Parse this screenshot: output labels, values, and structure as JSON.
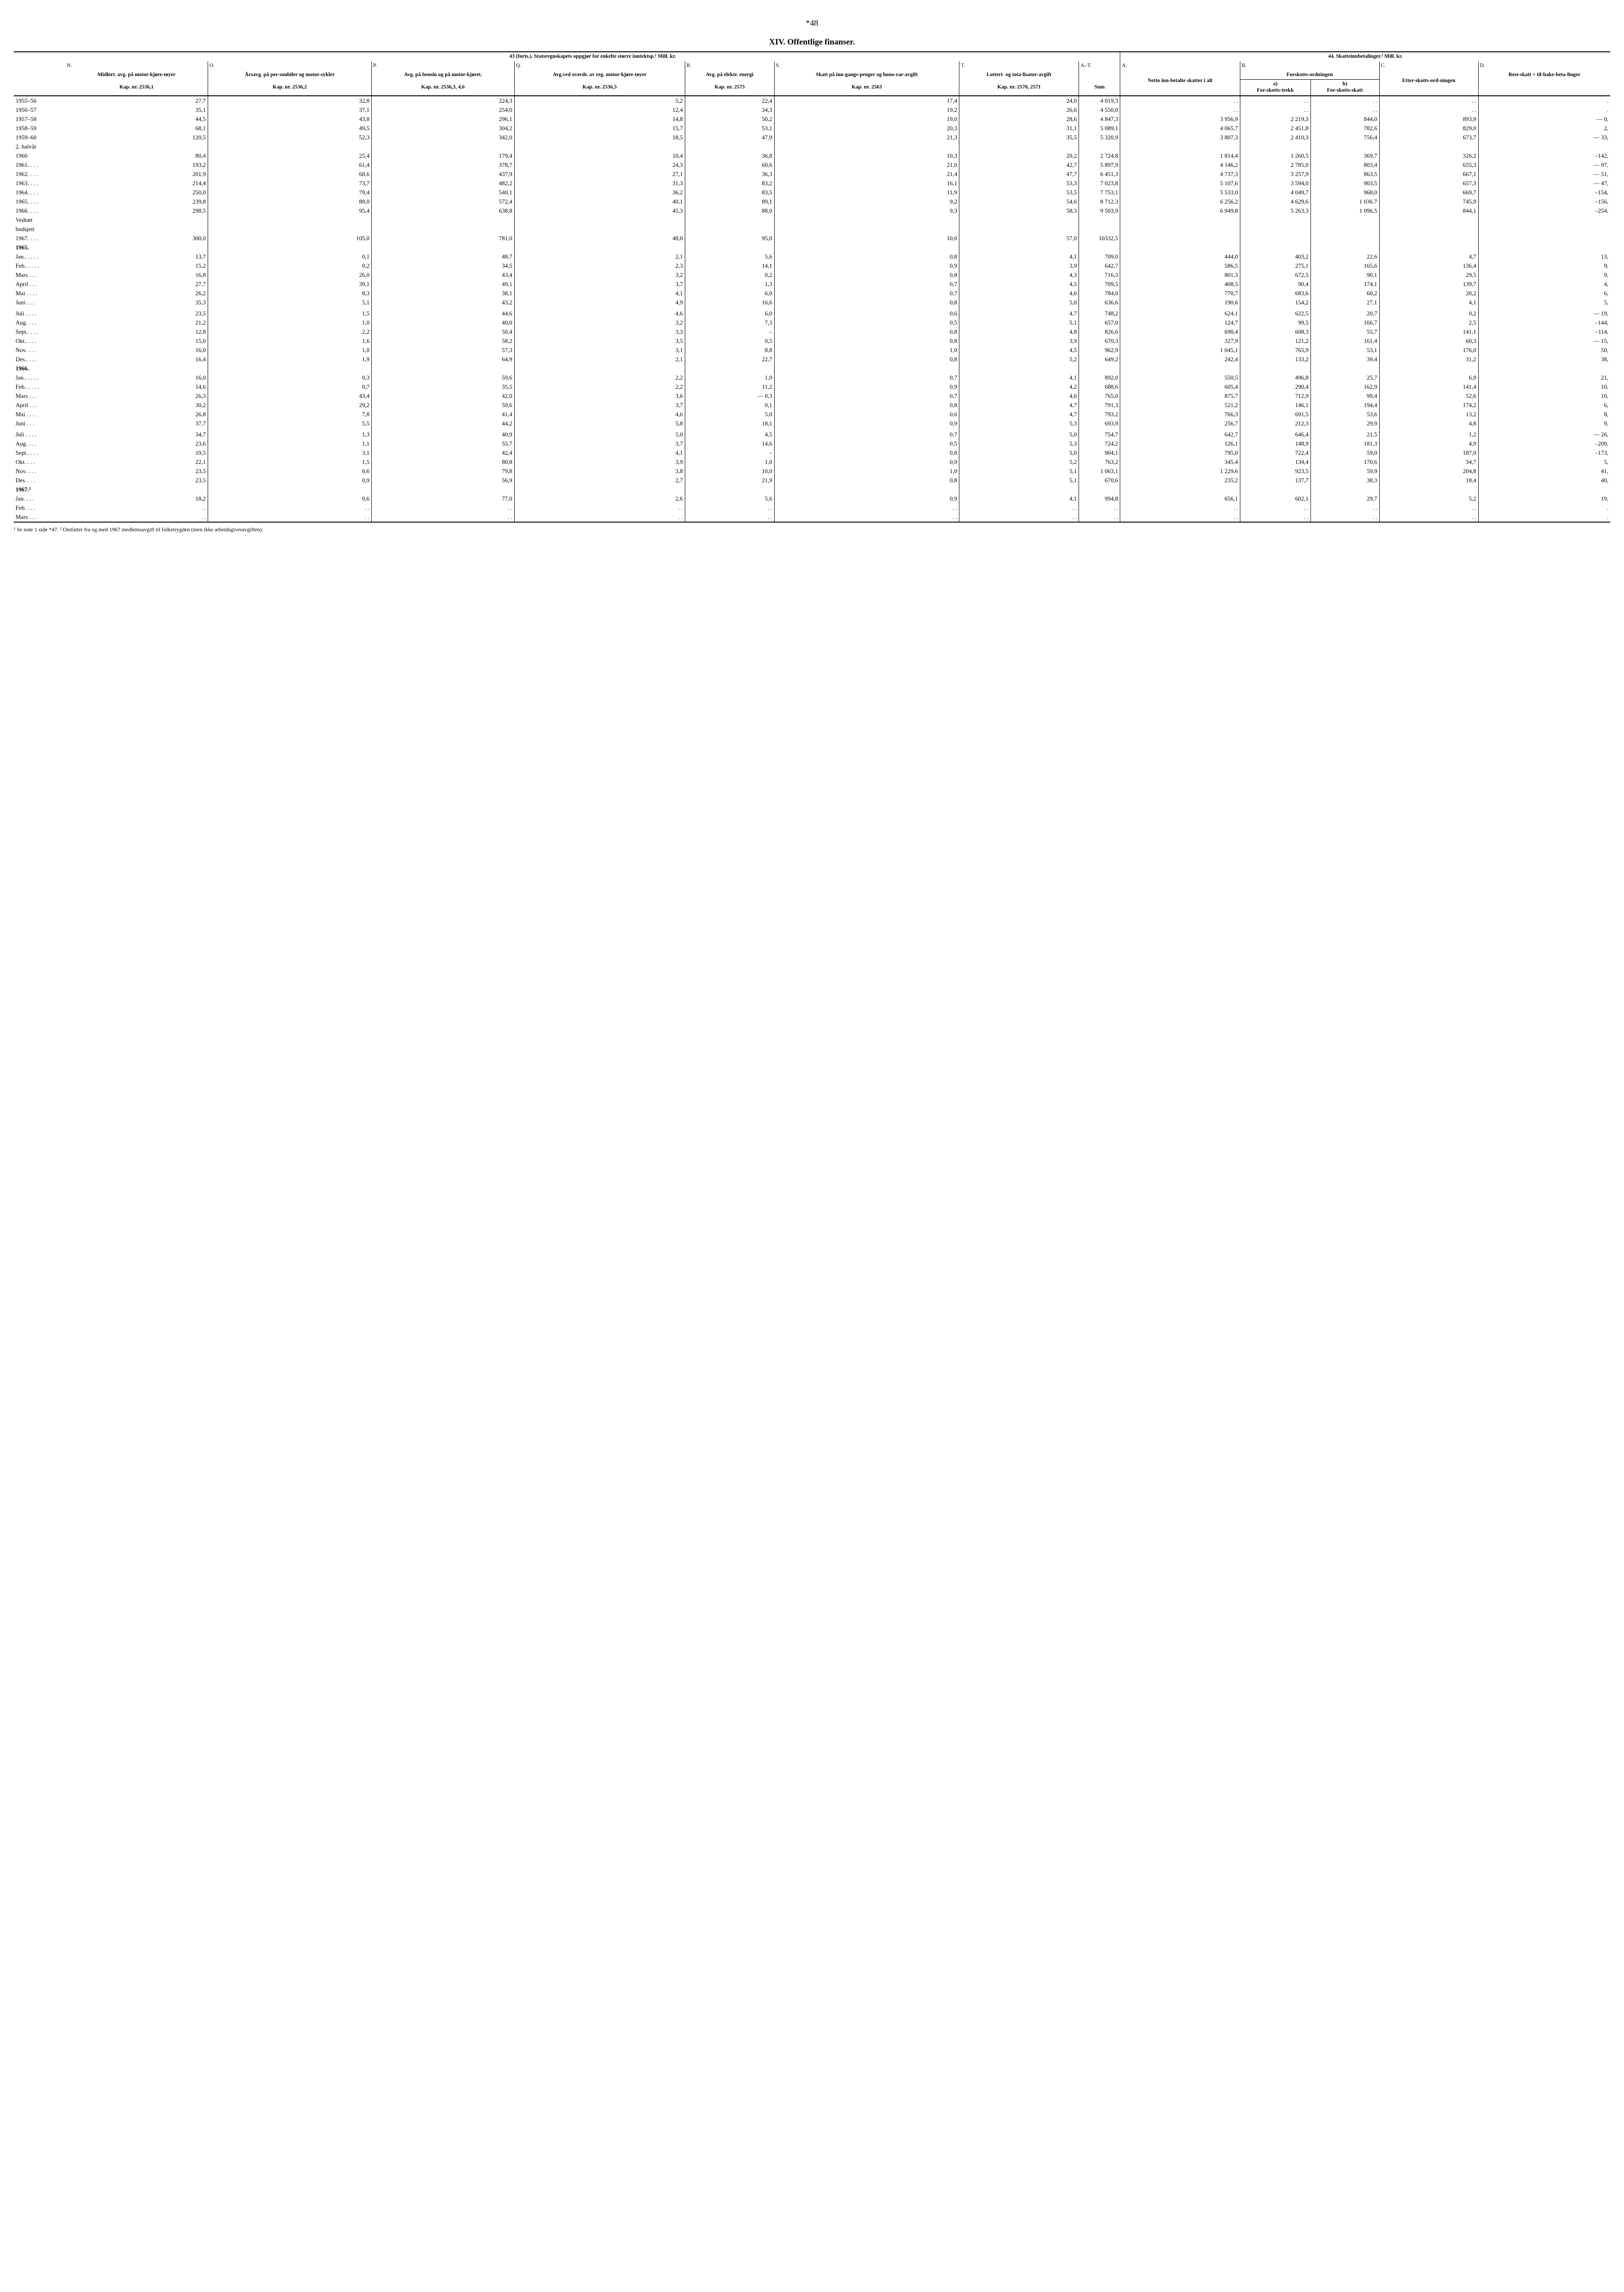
{
  "page_number": "*48",
  "title": "XIV. Offentlige finanser.",
  "header": {
    "left_group": "43 (forts.). Statsregnskapets oppgjør for enkelte større inntektsp.¹ Mill. kr.",
    "right_group": "44. Skatteinnbetalinger.² Mill. kr.",
    "cols": {
      "N": {
        "letter": "N.",
        "desc": "Midlert. avg. på motor-kjøre-tøyer",
        "kap": "Kap. nr. 2536,1"
      },
      "O": {
        "letter": "O.",
        "desc": "Årsavg. på per-sonbiler og motor-sykler",
        "kap": "Kap. nr. 2536,2"
      },
      "P": {
        "letter": "P.",
        "desc": "Avg. på bensin og på motor-kjøret.",
        "kap": "Kap. nr. 2536,3, 4,6"
      },
      "Q": {
        "letter": "Q.",
        "desc": "Avg.ved overdr. av reg. motor-kjøre-tøyer",
        "kap": "Kap. nr. 2536,5"
      },
      "R": {
        "letter": "R.",
        "desc": "Avg. på elektr. energi",
        "kap": "Kap. nr. 2575"
      },
      "S": {
        "letter": "S.",
        "desc": "Skatt på inn-gangs-penger og hono-rar-avgift",
        "kap": "Kap. nr. 2563"
      },
      "T": {
        "letter": "T.",
        "desc": "Lotteri- og tota-lisator-avgift",
        "kap": "Kap. nr. 2570, 2571"
      },
      "AT": {
        "letter": "A.-T.",
        "desc": "Sum"
      },
      "A2": {
        "letter": "A.",
        "desc": "Netto inn-betalte skatter i alt"
      },
      "B2": {
        "letter": "B.",
        "desc": "Forskotts-ordningen",
        "sub_a": "a)",
        "sub_a_desc": "For-skotts-trekk",
        "sub_b": "b)",
        "sub_b_desc": "For-skotts-skatt"
      },
      "C2": {
        "letter": "C.",
        "desc": "Etter-skotts-ord-ningen"
      },
      "D2": {
        "letter": "D.",
        "desc": "Rest-skatt ÷ til-bake-beta-linger"
      }
    }
  },
  "rows": [
    {
      "label": "1955–56",
      "N": "27,7",
      "O": "32,8",
      "P": "224,3",
      "Q": "5,2",
      "R": "22,4",
      "S": "17,4",
      "T": "24,0",
      "AT": "4 019,3",
      "A2": ". .",
      "Ba": ". .",
      "Bb": ". .",
      "C2": ". .",
      "D2": "."
    },
    {
      "label": "1956–57",
      "N": "35,1",
      "O": "37,1",
      "P": "254,0",
      "Q": "12,4",
      "R": "34,3",
      "S": "19,2",
      "T": "26,6",
      "AT": "4 550,0",
      "A2": ". .",
      "Ba": ". .",
      "Bb": ". .",
      "C2": ". .",
      "D2": "."
    },
    {
      "label": "1957–58",
      "N": "44,5",
      "O": "43,8",
      "P": "296,1",
      "Q": "14,8",
      "R": "50,2",
      "S": "19,0",
      "T": "28,6",
      "AT": "4 847,3",
      "A2": "3 956,9",
      "Ba": "2 219,3",
      "Bb": "844,0",
      "C2": "893,9",
      "D2": "— 0,"
    },
    {
      "label": "1958–59",
      "N": "68,1",
      "O": "49,5",
      "P": "304,2",
      "Q": "15,7",
      "R": "53,1",
      "S": "20,3",
      "T": "31,1",
      "AT": "5 089,1",
      "A2": "4 065,7",
      "Ba": "2 451,8",
      "Bb": "782,6",
      "C2": "829,0",
      "D2": "2,"
    },
    {
      "label": "1959–60",
      "N": "120,5",
      "O": "52,3",
      "P": "342,0",
      "Q": "18,5",
      "R": "47,9",
      "S": "21,3",
      "T": "35,5",
      "AT": "5 320,9",
      "A2": "3 807,3",
      "Ba": "2 410,3",
      "Bb": "756,4",
      "C2": "673,7",
      "D2": "— 33,"
    },
    {
      "label": "2. halvår",
      "section": true
    },
    {
      "label": "1960",
      "N": "80,4",
      "O": "25,4",
      "P": "179,4",
      "Q": "10,4",
      "R": "36,8",
      "S": "10,3",
      "T": "20,2",
      "AT": "2 724,8",
      "A2": "1 814,4",
      "Ba": "1 260,5",
      "Bb": "369,7",
      "C2": "326,2",
      "D2": "–142,"
    },
    {
      "label": "1961. . . .",
      "N": "193,2",
      "O": "61,4",
      "P": "378,7",
      "Q": "24,3",
      "R": "60,6",
      "S": "21,0",
      "T": "42,7",
      "AT": "5 897,9",
      "A2": "4 146,2",
      "Ba": "2 785,0",
      "Bb": "803,4",
      "C2": "655,3",
      "D2": "— 97,"
    },
    {
      "label": "1962. . . .",
      "N": "201,9",
      "O": "68,6",
      "P": "437,9",
      "Q": "27,1",
      "R": "36,3",
      "S": "21,4",
      "T": "47,7",
      "AT": "6 451,3",
      "A2": "4 737,3",
      "Ba": "3 257,9",
      "Bb": "863,5",
      "C2": "667,1",
      "D2": "— 51,"
    },
    {
      "label": "1963. . . .",
      "N": "214,4",
      "O": "73,7",
      "P": "482,2",
      "Q": "31,3",
      "R": "83,2",
      "S": "16,1",
      "T": "53,3",
      "AT": "7 023,8",
      "A2": "5 107,6",
      "Ba": "3 594,0",
      "Bb": "903,5",
      "C2": "657,3",
      "D2": "— 47,"
    },
    {
      "label": "1964. . . .",
      "N": "250,0",
      "O": "79,4",
      "P": "540,1",
      "Q": "36,2",
      "R": "83,5",
      "S": "11,9",
      "T": "53,5",
      "AT": "7 753,1",
      "A2": "5 533,0",
      "Ba": "4 049,7",
      "Bb": "968,0",
      "C2": "669,7",
      "D2": "–154,"
    },
    {
      "label": "1965. . . .",
      "N": "239,8",
      "O": "88,0",
      "P": "572,4",
      "Q": "40,1",
      "R": "89,1",
      "S": "9,2",
      "T": "54,6",
      "AT": "8 712.3",
      "A2": "6 256,2",
      "Ba": "4 629,6",
      "Bb": "1 036.7",
      "C2": "745,9",
      "D2": "–156,"
    },
    {
      "label": "1966. . . .",
      "N": "298,5",
      "O": "95,4",
      "P": "638,8",
      "Q": "45,3",
      "R": "88,0",
      "S": "9,3",
      "T": "58,3",
      "AT": "9 503,9",
      "A2": "6 949,8",
      "Ba": "5 263,3",
      "Bb": "1 096,5",
      "C2": "844,1",
      "D2": "–254,"
    },
    {
      "label": "Vedtatt",
      "section": true
    },
    {
      "label": "budsjett",
      "section": true
    },
    {
      "label": "1967. . . .",
      "N": "300,0",
      "O": "105,0",
      "P": "781,0",
      "Q": "48,0",
      "R": "95,0",
      "S": "10,0",
      "T": "57,0",
      "AT": "10332,5",
      "A2": "",
      "Ba": "",
      "Bb": "",
      "C2": "",
      "D2": ""
    },
    {
      "label": "1965.",
      "bold": true,
      "section": true
    },
    {
      "label": "Jan.. . . . .",
      "N": "13,7",
      "O": "0,1",
      "P": "48,7",
      "Q": "2,1",
      "R": "5,6",
      "S": "0,8",
      "T": "4,1",
      "AT": "709,0",
      "A2": "444,0",
      "Ba": "403,2",
      "Bb": "22,6",
      "C2": "4,7",
      "D2": "13,"
    },
    {
      "label": "Feb.. . . . .",
      "N": "15,2",
      "O": "0,2",
      "P": "34,5",
      "Q": "2,3",
      "R": "14,1",
      "S": "0,9",
      "T": "3,9",
      "AT": "642,7",
      "A2": "586,5",
      "Ba": "275,1",
      "Bb": "165,6",
      "C2": "136,4",
      "D2": "9,"
    },
    {
      "label": "Mars . . .",
      "N": "16,8",
      "O": "26,0",
      "P": "43,4",
      "Q": "3,2",
      "R": "0,2",
      "S": "0,8",
      "T": "4,3",
      "AT": "716,3",
      "A2": "801,3",
      "Ba": "672,5",
      "Bb": "90,1",
      "C2": "29,5",
      "D2": "9,"
    },
    {
      "label": "April . . .",
      "N": "27,7",
      "O": "39,1",
      "P": "49,1",
      "Q": "3,7",
      "R": "1,3",
      "S": "0,7",
      "T": "4,5",
      "AT": "709,5",
      "A2": "408,5",
      "Ba": "90,4",
      "Bb": "174,1",
      "C2": "139,7",
      "D2": "4,"
    },
    {
      "label": "Mai . . . .",
      "N": "26,2",
      "O": "8,3",
      "P": "38,1",
      "Q": "4,1",
      "R": "6,0",
      "S": "0,7",
      "T": "4,6",
      "AT": "784,0",
      "A2": "770,7",
      "Ba": "683,6",
      "Bb": "60,2",
      "C2": "20,2",
      "D2": "6,"
    },
    {
      "label": "Juni . . .",
      "N": "35,3",
      "O": "5,1",
      "P": "43,2",
      "Q": "4,9",
      "R": "16,6",
      "S": "0,8",
      "T": "5,0",
      "AT": "636,6",
      "A2": "190,6",
      "Ba": "154,2",
      "Bb": "27,1",
      "C2": "4,1",
      "D2": "5,"
    },
    {
      "label": "",
      "spacer": true
    },
    {
      "label": "Juli . . . .",
      "N": "23,5",
      "O": "1,5",
      "P": "44,6",
      "Q": "4,6",
      "R": "6,0",
      "S": "0,6",
      "T": "4,7",
      "AT": "748,2",
      "A2": "624,1",
      "Ba": "622,5",
      "Bb": "20,7",
      "C2": "0,2",
      "D2": "— 19,"
    },
    {
      "label": "Aug. . . .",
      "N": "21,2",
      "O": "1,0",
      "P": "40,0",
      "Q": "3,2",
      "R": "7,3",
      "S": "0,5",
      "T": "5,1",
      "AT": "657,0",
      "A2": "124,7",
      "Ba": "99,5",
      "Bb": "166,7",
      "C2": "2,5",
      "D2": "–144,"
    },
    {
      "label": "Sept.. . . .",
      "N": "12,8",
      "O": "2,2",
      "P": "50,4",
      "Q": "3,3",
      "R": "–",
      "S": "0,8",
      "T": "4,8",
      "AT": "826,6",
      "A2": "690,4",
      "Ba": "608,3",
      "Bb": "55,7",
      "C2": "141,1",
      "D2": "–114,"
    },
    {
      "label": "Okt.. . . .",
      "N": "15,0",
      "O": "1,6",
      "P": "58,2",
      "Q": "3,5",
      "R": "0,5",
      "S": "0,8",
      "T": "3,9",
      "AT": "670,3",
      "A2": "327,9",
      "Ba": "121,2",
      "Bb": "161,4",
      "C2": "60,3",
      "D2": "— 15,"
    },
    {
      "label": "Nov. . . .",
      "N": "16,0",
      "O": "1,0",
      "P": "57,3",
      "Q": "3,1",
      "R": "8,8",
      "S": "1,0",
      "T": "4,5",
      "AT": "962,9",
      "A2": "1 045,1",
      "Ba": "765,9",
      "Bb": "53,1",
      "C2": "176,0",
      "D2": "50,"
    },
    {
      "label": "Des.. . . .",
      "N": "16,4",
      "O": "1,9",
      "P": "64,9",
      "Q": "2,1",
      "R": "22,7",
      "S": "0,8",
      "T": "5,2",
      "AT": "649,2",
      "A2": "242,4",
      "Ba": "133,2",
      "Bb": "39,4",
      "C2": "31,2",
      "D2": "38,"
    },
    {
      "label": "1966.",
      "bold": true,
      "section": true
    },
    {
      "label": "Jan.. . . . .",
      "N": "16,0",
      "O": "0,3",
      "P": "59,6",
      "Q": "2,2",
      "R": "1,9",
      "S": "0,7",
      "T": "4,1",
      "AT": "892,0",
      "A2": "550,5",
      "Ba": "496,8",
      "Bb": "25,7",
      "C2": "6,9",
      "D2": "21,"
    },
    {
      "label": "Feb.. . . . .",
      "N": "14,6",
      "O": "0,7",
      "P": "35,5",
      "Q": "2,2",
      "R": "11,2",
      "S": "0,9",
      "T": "4,2",
      "AT": "688,6",
      "A2": "605,4",
      "Ba": "290,4",
      "Bb": "162,9",
      "C2": "141,4",
      "D2": "10,"
    },
    {
      "label": "Mars . . .",
      "N": "26,3",
      "O": "43,4",
      "P": "42,0",
      "Q": "3,6",
      "R": "— 0,3",
      "S": "0,7",
      "T": "4,6",
      "AT": "765,0",
      "A2": "875,7",
      "Ba": "712,9",
      "Bb": "99,4",
      "C2": "52,6",
      "D2": "10,"
    },
    {
      "label": "April . . .",
      "N": "30,2",
      "O": "29,2",
      "P": "59,6",
      "Q": "3,7",
      "R": "0,1",
      "S": "0,8",
      "T": "4,7",
      "AT": "791,3",
      "A2": "521,2",
      "Ba": "146,1",
      "Bb": "194,4",
      "C2": "174,2",
      "D2": "6,"
    },
    {
      "label": "Mai . . . .",
      "N": "26,8",
      "O": "7,8",
      "P": "41,4",
      "Q": "4,6",
      "R": "5,0",
      "S": "0,6",
      "T": "4,7",
      "AT": "793,2",
      "A2": "766,3",
      "Ba": "691,5",
      "Bb": "53,6",
      "C2": "13,2",
      "D2": "8,"
    },
    {
      "label": "Juni . . .",
      "N": "37,7",
      "O": "5,5",
      "P": "44,2",
      "Q": "5,8",
      "R": "18,1",
      "S": "0,9",
      "T": "5,3",
      "AT": "693,9",
      "A2": "256,7",
      "Ba": "212,3",
      "Bb": "29,9",
      "C2": "4,8",
      "D2": "9,"
    },
    {
      "label": "",
      "spacer": true
    },
    {
      "label": "Juli . . . .",
      "N": "34,7",
      "O": "1,3",
      "P": "40,9",
      "Q": "5,0",
      "R": "4,5",
      "S": "0,7",
      "T": "5,0",
      "AT": "754,7",
      "A2": "642,7",
      "Ba": "646,4",
      "Bb": "21,5",
      "C2": "1,2",
      "D2": "— 26,"
    },
    {
      "label": "Aug. . . .",
      "N": "23,6",
      "O": "1,1",
      "P": "55,7",
      "Q": "3,7",
      "R": "14,6",
      "S": "0,5",
      "T": "5,3",
      "AT": "724,2",
      "A2": "126,1",
      "Ba": "148,9",
      "Bb": "181,3",
      "C2": "4,9",
      "D2": "–209,"
    },
    {
      "label": "Sept.. . . .",
      "N": "19,5",
      "O": "3,1",
      "P": "42,4",
      "Q": "4,1",
      "R": "–",
      "S": "0,8",
      "T": "5,0",
      "AT": "904,1",
      "A2": "795,0",
      "Ba": "722,4",
      "Bb": "59,0",
      "C2": "187,0",
      "D2": "–173,"
    },
    {
      "label": "Okt. . . .",
      "N": "22,1",
      "O": "1,5",
      "P": "80,8",
      "Q": "3,9",
      "R": "1,0",
      "S": "0,9",
      "T": "5,2",
      "AT": "763,2",
      "A2": "345,4",
      "Ba": "134,4",
      "Bb": "170,6",
      "C2": "34,7",
      "D2": "5,"
    },
    {
      "label": "Nov. . . .",
      "N": "23,5",
      "O": "0,6",
      "P": "79,8",
      "Q": "3,8",
      "R": "10,0",
      "S": "1,0",
      "T": "5,1",
      "AT": "1 063,1",
      "A2": "1 229,6",
      "Ba": "923,5",
      "Bb": "59,9",
      "C2": "204,8",
      "D2": "41,"
    },
    {
      "label": "Des. . . .",
      "N": "23,5",
      "O": "0,9",
      "P": "56,9",
      "Q": "2,7",
      "R": "21,9",
      "S": "0,8",
      "T": "5,1",
      "AT": "670,6",
      "A2": "235,2",
      "Ba": "137,7",
      "Bb": "38,3",
      "C2": "18,4",
      "D2": "40,"
    },
    {
      "label": "1967.²",
      "bold": true,
      "section": true
    },
    {
      "label": "Jan. . . .",
      "N": "18,2",
      "O": "0,6",
      "P": "77,0",
      "Q": "2,6",
      "R": "5,6",
      "S": "0,9",
      "T": "4,1",
      "AT": "994,8",
      "A2": "656,1",
      "Ba": "602,1",
      "Bb": "29,7",
      "C2": "5,2",
      "D2": "19,"
    },
    {
      "label": "Feb. . . .",
      "N": ". .",
      "O": ". .",
      "P": ". .",
      "Q": ". .",
      "R": ". .",
      "S": ". .",
      "T": ". .",
      "AT": ". .",
      "A2": ". .",
      "Ba": ". .",
      "Bb": ". .",
      "C2": ". .",
      "D2": "."
    },
    {
      "label": "Mars . . .",
      "N": ". .",
      "O": ". .",
      "P": ". .",
      "Q": ". .",
      "R": ". .",
      "S": ". .",
      "T": ". .",
      "AT": ". .",
      "A2": ". .",
      "Ba": ". .",
      "Bb": ". .",
      "C2": ". .",
      "D2": "."
    }
  ],
  "footnote": "¹ Se note 1 side *47. ² Omfatter fra og med 1967 medlemsavgift til folketrygden (men ikke arbeidsgiveravgiften).",
  "colors": {
    "text": "#000000",
    "bg": "#ffffff",
    "border": "#000000"
  }
}
